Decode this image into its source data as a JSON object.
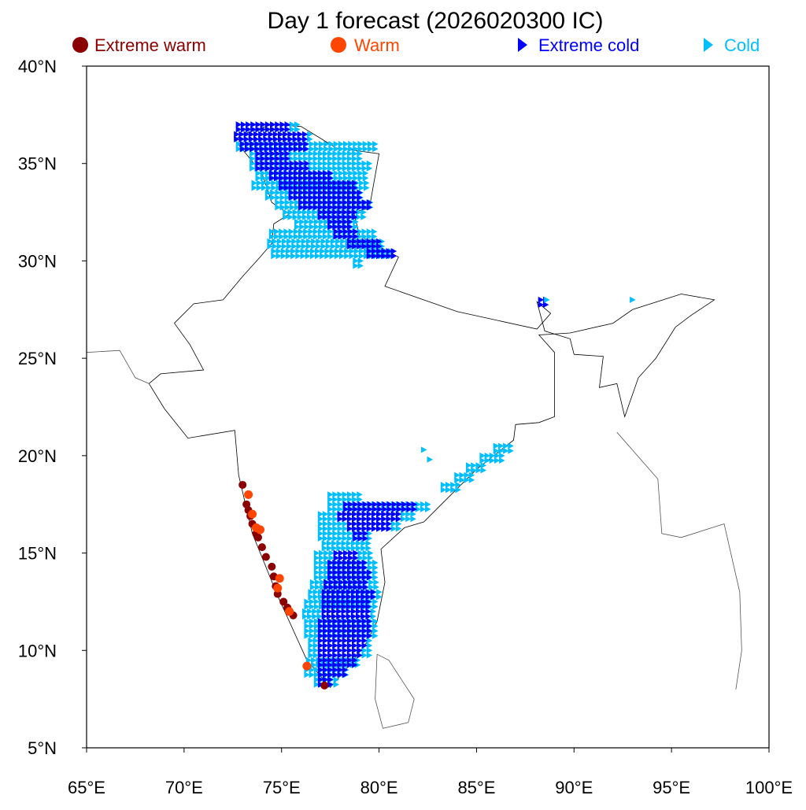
{
  "chart_data": {
    "type": "scatter",
    "title": "Day 1 forecast (2026020300 IC)",
    "xlim": [
      65,
      100
    ],
    "ylim": [
      5,
      40
    ],
    "x_ticks": [
      65,
      70,
      75,
      80,
      85,
      90,
      95,
      100
    ],
    "x_tick_labels": [
      "65°E",
      "70°E",
      "75°E",
      "80°E",
      "85°E",
      "90°E",
      "95°E",
      "100°E"
    ],
    "y_ticks": [
      40,
      35,
      30,
      25,
      20,
      15,
      10,
      5
    ],
    "y_tick_labels": [
      "40°N",
      "35°N",
      "30°N",
      "25°N",
      "20°N",
      "15°N",
      "10°N",
      "5°N"
    ],
    "grid": false,
    "legend_placement": "top",
    "legend": [
      {
        "key": "extreme_warm",
        "label": "Extreme warm",
        "marker": "circle",
        "color": "#8B0000"
      },
      {
        "key": "warm",
        "label": "Warm",
        "marker": "circle",
        "color": "#FF4500"
      },
      {
        "key": "extreme_cold",
        "label": "Extreme cold",
        "marker": "triangle-right",
        "color": "#0000FF"
      },
      {
        "key": "cold",
        "label": "Cold",
        "marker": "triangle-right",
        "color": "#00BFFF"
      }
    ],
    "grid_spacing_deg": 0.25,
    "cold_row_spans": [
      [
        37.0,
        72.8,
        76.0
      ],
      [
        36.5,
        72.7,
        76.5
      ],
      [
        36.0,
        72.8,
        79.8
      ],
      [
        35.5,
        73.5,
        79.2
      ],
      [
        35.0,
        73.5,
        79.5
      ],
      [
        34.5,
        73.8,
        79.3
      ],
      [
        34.0,
        73.6,
        79.5
      ],
      [
        33.5,
        74.3,
        79.2
      ],
      [
        33.0,
        74.8,
        79.6
      ],
      [
        32.5,
        75.2,
        79.2
      ],
      [
        32.0,
        75.8,
        79.0
      ],
      [
        31.5,
        74.5,
        79.8
      ],
      [
        31.0,
        74.4,
        80.3
      ],
      [
        30.5,
        74.6,
        80.8
      ],
      [
        30.0,
        78.8,
        79.2
      ],
      [
        20.5,
        86.0,
        86.8
      ],
      [
        20.0,
        85.3,
        86.4
      ],
      [
        19.5,
        84.6,
        85.5
      ],
      [
        19.0,
        84.0,
        84.8
      ],
      [
        18.5,
        83.3,
        84.2
      ],
      [
        18.0,
        77.5,
        79.0
      ],
      [
        17.5,
        77.5,
        82.6
      ],
      [
        17.0,
        77.0,
        81.8
      ],
      [
        16.5,
        77.0,
        81.2
      ],
      [
        16.0,
        77.0,
        79.5
      ],
      [
        15.5,
        77.2,
        79.5
      ],
      [
        15.0,
        76.8,
        79.6
      ],
      [
        14.5,
        76.8,
        79.8
      ],
      [
        14.0,
        76.8,
        79.8
      ],
      [
        13.5,
        76.6,
        80.0
      ],
      [
        13.0,
        76.5,
        80.0
      ],
      [
        12.5,
        76.3,
        79.9
      ],
      [
        12.0,
        76.2,
        79.8
      ],
      [
        11.5,
        76.3,
        79.8
      ],
      [
        11.0,
        76.3,
        79.8
      ],
      [
        10.5,
        76.5,
        79.6
      ],
      [
        10.0,
        76.5,
        79.5
      ],
      [
        9.5,
        76.4,
        79.0
      ],
      [
        9.0,
        76.3,
        78.5
      ],
      [
        8.5,
        76.8,
        77.8
      ]
    ],
    "extreme_cold_row_spans": [
      [
        37.0,
        72.8,
        75.5
      ],
      [
        36.5,
        72.7,
        76.2
      ],
      [
        36.0,
        73.0,
        76.3
      ],
      [
        35.5,
        73.8,
        75.5
      ],
      [
        35.0,
        73.8,
        76.5
      ],
      [
        34.5,
        74.5,
        77.5
      ],
      [
        34.0,
        75.0,
        78.8
      ],
      [
        33.5,
        75.5,
        79.0
      ],
      [
        33.0,
        76.0,
        79.6
      ],
      [
        32.5,
        77.0,
        78.8
      ],
      [
        32.0,
        77.5,
        78.5
      ],
      [
        31.5,
        77.8,
        79.0
      ],
      [
        31.0,
        78.5,
        80.0
      ],
      [
        30.5,
        79.5,
        80.8
      ],
      [
        17.5,
        78.3,
        82.0
      ],
      [
        17.0,
        78.0,
        81.2
      ],
      [
        16.5,
        78.5,
        80.5
      ],
      [
        16.0,
        78.8,
        79.3
      ],
      [
        15.0,
        77.8,
        79.0
      ],
      [
        14.5,
        77.5,
        79.3
      ],
      [
        14.0,
        77.5,
        79.5
      ],
      [
        13.5,
        77.3,
        79.5
      ],
      [
        13.0,
        77.2,
        79.8
      ],
      [
        12.5,
        77.2,
        79.5
      ],
      [
        12.0,
        77.2,
        79.5
      ],
      [
        11.5,
        77.0,
        79.6
      ],
      [
        11.0,
        77.0,
        79.6
      ],
      [
        10.5,
        77.0,
        79.3
      ],
      [
        10.0,
        77.0,
        79.0
      ],
      [
        9.5,
        77.0,
        78.8
      ],
      [
        9.0,
        77.0,
        78.3
      ],
      [
        8.5,
        77.0,
        77.6
      ],
      [
        28.0,
        88.3,
        88.7
      ]
    ],
    "cold_points": [
      [
        88.6,
        28.0
      ],
      [
        93.0,
        28.0
      ],
      [
        82.3,
        20.3
      ],
      [
        82.6,
        19.8
      ]
    ],
    "extreme_warm_points": [
      [
        73.0,
        18.5
      ],
      [
        73.2,
        17.5
      ],
      [
        73.3,
        17.2
      ],
      [
        73.4,
        16.9
      ],
      [
        73.5,
        16.5
      ],
      [
        73.7,
        16.0
      ],
      [
        73.8,
        15.8
      ],
      [
        74.0,
        15.3
      ],
      [
        74.2,
        14.8
      ],
      [
        74.5,
        14.3
      ],
      [
        74.6,
        13.8
      ],
      [
        74.7,
        13.3
      ],
      [
        74.8,
        12.9
      ],
      [
        75.1,
        12.5
      ],
      [
        75.3,
        12.2
      ],
      [
        75.6,
        11.8
      ],
      [
        77.2,
        8.2
      ]
    ],
    "warm_points": [
      [
        73.3,
        18.0
      ],
      [
        73.5,
        17.0
      ],
      [
        73.7,
        16.3
      ],
      [
        73.9,
        16.2
      ],
      [
        74.9,
        13.7
      ],
      [
        74.8,
        13.2
      ],
      [
        75.4,
        12.0
      ],
      [
        76.3,
        9.2
      ]
    ]
  }
}
